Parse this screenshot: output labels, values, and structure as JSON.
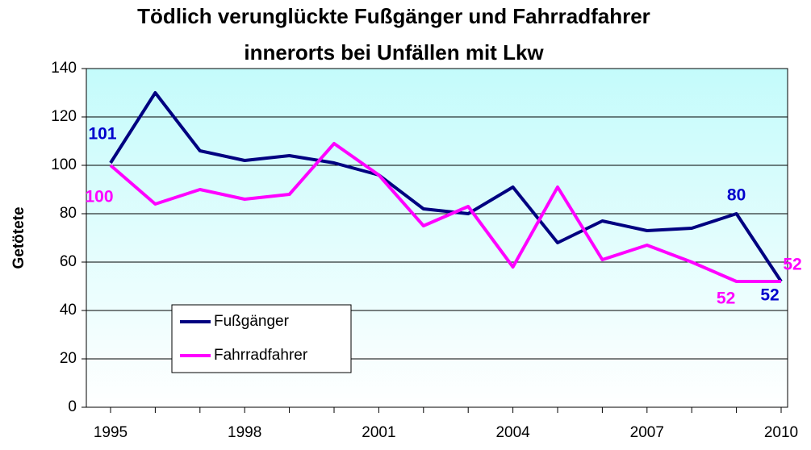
{
  "chart_data": {
    "type": "line",
    "title": [
      "Tödlich verunglückte Fußgänger und Fahrradfahrer",
      "innerorts bei Unfällen mit Lkw"
    ],
    "ylabel": "Getötete",
    "categories": [
      "1995",
      null,
      null,
      "1998",
      null,
      null,
      "2001",
      null,
      null,
      "2004",
      null,
      null,
      "2007",
      null,
      null,
      "2010"
    ],
    "series": [
      {
        "name": "Fußgänger",
        "color": "#000080",
        "label_color": "#0000cc",
        "values": [
          101,
          130,
          106,
          102,
          104,
          101,
          96,
          82,
          80,
          91,
          68,
          77,
          73,
          74,
          80,
          52
        ],
        "labeled": [
          0,
          14,
          15
        ]
      },
      {
        "name": "Fahrradfahrer",
        "color": "#ff00ff",
        "label_color": "#ff00ff",
        "values": [
          100,
          84,
          90,
          86,
          88,
          109,
          96,
          75,
          83,
          58,
          91,
          61,
          67,
          60,
          52,
          52
        ],
        "labeled": [
          0,
          14,
          15
        ]
      }
    ],
    "ylim": [
      0,
      140
    ],
    "yticks": [
      0,
      20,
      40,
      60,
      80,
      100,
      120,
      140
    ],
    "grid": true,
    "legend": "lower left"
  }
}
